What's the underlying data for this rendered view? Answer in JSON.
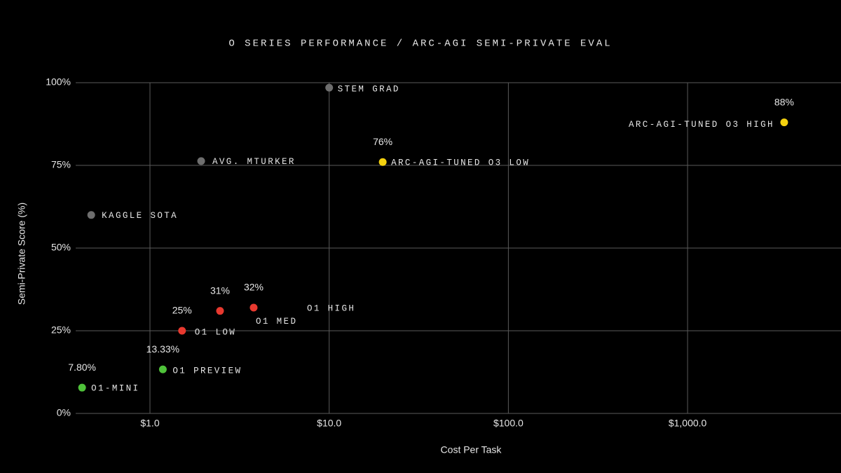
{
  "chart_data": {
    "type": "scatter",
    "title": "O SERIES PERFORMANCE / ARC-AGI SEMI-PRIVATE EVAL",
    "x_label": "Cost Per Task",
    "y_label": "Semi-Private Score (%)",
    "xscale": "log",
    "grid": true,
    "xlim": [
      0.385,
      7180
    ],
    "ylim": [
      0,
      100
    ],
    "xticks": [
      {
        "value": 1,
        "label": "$1.0"
      },
      {
        "value": 10,
        "label": "$10.0"
      },
      {
        "value": 100,
        "label": "$100.0"
      },
      {
        "value": 1000,
        "label": "$1,000.0"
      }
    ],
    "yticks": [
      {
        "value": 0,
        "label": "0%"
      },
      {
        "value": 25,
        "label": "25%"
      },
      {
        "value": 50,
        "label": "50%"
      },
      {
        "value": 75,
        "label": "75%"
      },
      {
        "value": 100,
        "label": "100%"
      }
    ],
    "series": [
      {
        "color": "#6e6e6e",
        "x": [
          10,
          1.93,
          0.47
        ],
        "values": [
          98.5,
          76.3,
          60
        ],
        "labels": [
          "STEM GRAD",
          "AVG. MTURKER",
          "KAGGLE SOTA"
        ]
      },
      {
        "color": "#4fc23a",
        "x": [
          0.418,
          1.18
        ],
        "values": [
          7.8,
          13.33
        ],
        "labels": [
          "O1-MINI",
          "O1 PREVIEW"
        ],
        "value_labels": [
          "7.80%",
          "13.33%"
        ]
      },
      {
        "color": "#e8392f",
        "x": [
          1.51,
          2.46,
          3.79
        ],
        "values": [
          25,
          31,
          32
        ],
        "labels": [
          "O1 LOW",
          "O1 MED",
          "O1 HIGH"
        ],
        "value_labels": [
          "25%",
          "31%",
          "32%"
        ]
      },
      {
        "color": "#f5d20f",
        "x": [
          19.9,
          3460
        ],
        "values": [
          76,
          88
        ],
        "labels": [
          "ARC-AGI-TUNED O3 LOW",
          "ARC-AGI-TUNED O3 HIGH"
        ],
        "value_labels": [
          "76%",
          "88%"
        ]
      }
    ]
  }
}
